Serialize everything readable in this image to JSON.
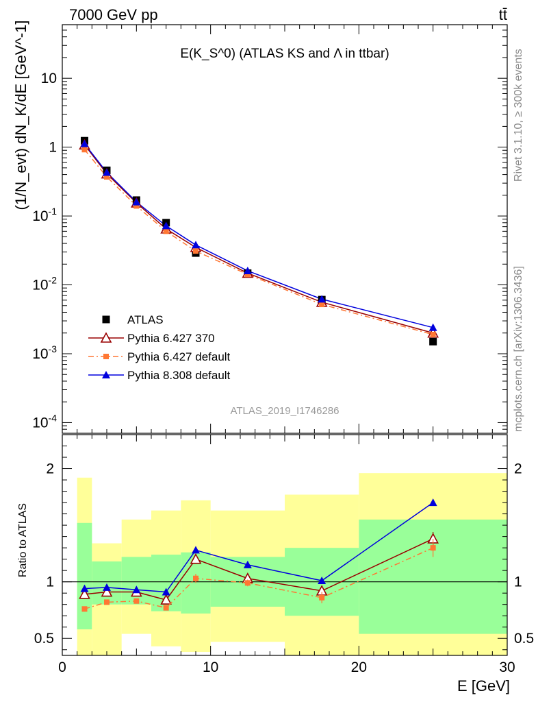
{
  "header": {
    "energy_label": "7000 GeV pp",
    "process_label": "tt̄"
  },
  "side_text": {
    "rivet": "Rivet 3.1.10, ≥ 300k events",
    "mcplots": "mcplots.cern.ch [arXiv:1306.3436]"
  },
  "chart_data": [
    {
      "type": "scatter",
      "title": "E(K_S^0) (ATLAS KS and Λ in ttbar)",
      "watermark": "ATLAS_2019_I1746286",
      "xlabel": "E [GeV]",
      "ylabel": "(1/N_evt) dN_K/dE [GeV^-1]",
      "xlim": [
        0,
        30
      ],
      "ylim": [
        7e-05,
        60
      ],
      "yscale": "log",
      "yticks": [
        "10^-4",
        "10^-3",
        "10^-2",
        "10^-1",
        "1",
        "10"
      ],
      "legend_position": "lower-left",
      "series": [
        {
          "name": "ATLAS",
          "color": "#000000",
          "marker": "square",
          "x": [
            1.5,
            3,
            5,
            7,
            9,
            12.5,
            17.5,
            25
          ],
          "y": [
            1.24,
            0.46,
            0.17,
            0.08,
            0.029,
            0.0148,
            0.0061,
            0.0015
          ]
        },
        {
          "name": "Pythia 6.427 370",
          "color": "#990000",
          "marker": "open-triangle",
          "line": "solid",
          "x": [
            1.5,
            3,
            5,
            7,
            9,
            12.5,
            17.5,
            25
          ],
          "y": [
            1.08,
            0.41,
            0.155,
            0.065,
            0.035,
            0.0148,
            0.0056,
            0.002
          ]
        },
        {
          "name": "Pythia 6.427 default",
          "color": "#ff7733",
          "marker": "small-square",
          "line": "dashdot",
          "x": [
            1.5,
            3,
            5,
            7,
            9,
            12.5,
            17.5,
            25
          ],
          "y": [
            0.92,
            0.37,
            0.14,
            0.06,
            0.031,
            0.0142,
            0.0052,
            0.0019
          ]
        },
        {
          "name": "Pythia 8.308 default",
          "color": "#0000dd",
          "marker": "filled-triangle",
          "line": "solid",
          "x": [
            1.5,
            3,
            5,
            7,
            9,
            12.5,
            17.5,
            25
          ],
          "y": [
            1.12,
            0.43,
            0.16,
            0.072,
            0.038,
            0.016,
            0.0062,
            0.0024
          ]
        }
      ]
    },
    {
      "type": "line",
      "xlabel": "E [GeV]",
      "ylabel": "Ratio to ATLAS",
      "xlim": [
        0,
        30
      ],
      "ylim": [
        0.35,
        2.3
      ],
      "yticks": [
        "0.5",
        "1",
        "2"
      ],
      "bands": {
        "edges": [
          1,
          2,
          4,
          6,
          8,
          10,
          15,
          20,
          30
        ],
        "inner": [
          [
            0.58,
            1.52
          ],
          [
            0.8,
            1.18
          ],
          [
            0.8,
            1.22
          ],
          [
            0.74,
            1.24
          ],
          [
            0.72,
            1.26
          ],
          [
            0.78,
            1.22
          ],
          [
            0.7,
            1.3
          ],
          [
            0.54,
            1.55
          ]
        ],
        "outer": [
          [
            0.1,
            1.92
          ],
          [
            0.1,
            1.34
          ],
          [
            0.54,
            1.55
          ],
          [
            0.43,
            1.63
          ],
          [
            0.38,
            1.72
          ],
          [
            0.47,
            1.63
          ],
          [
            0.1,
            1.77
          ],
          [
            0.1,
            1.96
          ]
        ],
        "inner_color": "#99ff99",
        "outer_color": "#ffff99"
      },
      "series": [
        {
          "name": "Pythia 6.427 370",
          "color": "#990000",
          "x": [
            1.5,
            3,
            5,
            7,
            9,
            12.5,
            17.5,
            25
          ],
          "y": [
            0.89,
            0.91,
            0.91,
            0.84,
            1.2,
            1.03,
            0.92,
            1.38
          ],
          "err": [
            0.02,
            0.02,
            0.02,
            0.02,
            0.03,
            0.03,
            0.04,
            0.06
          ]
        },
        {
          "name": "Pythia 6.427 default",
          "color": "#ff7733",
          "x": [
            1.5,
            3,
            5,
            7,
            9,
            12.5,
            17.5,
            25
          ],
          "y": [
            0.76,
            0.82,
            0.83,
            0.77,
            1.03,
            0.99,
            0.86,
            1.3
          ],
          "err": [
            0.02,
            0.02,
            0.02,
            0.02,
            0.04,
            0.03,
            0.05,
            0.08
          ]
        },
        {
          "name": "Pythia 8.308 default",
          "color": "#0000dd",
          "x": [
            1.5,
            3,
            5,
            7,
            9,
            12.5,
            17.5,
            25
          ],
          "y": [
            0.94,
            0.95,
            0.93,
            0.91,
            1.28,
            1.15,
            1.01,
            1.7
          ],
          "err": [
            0.01,
            0.01,
            0.01,
            0.01,
            0.02,
            0.02,
            0.02,
            0.03
          ]
        }
      ]
    }
  ]
}
